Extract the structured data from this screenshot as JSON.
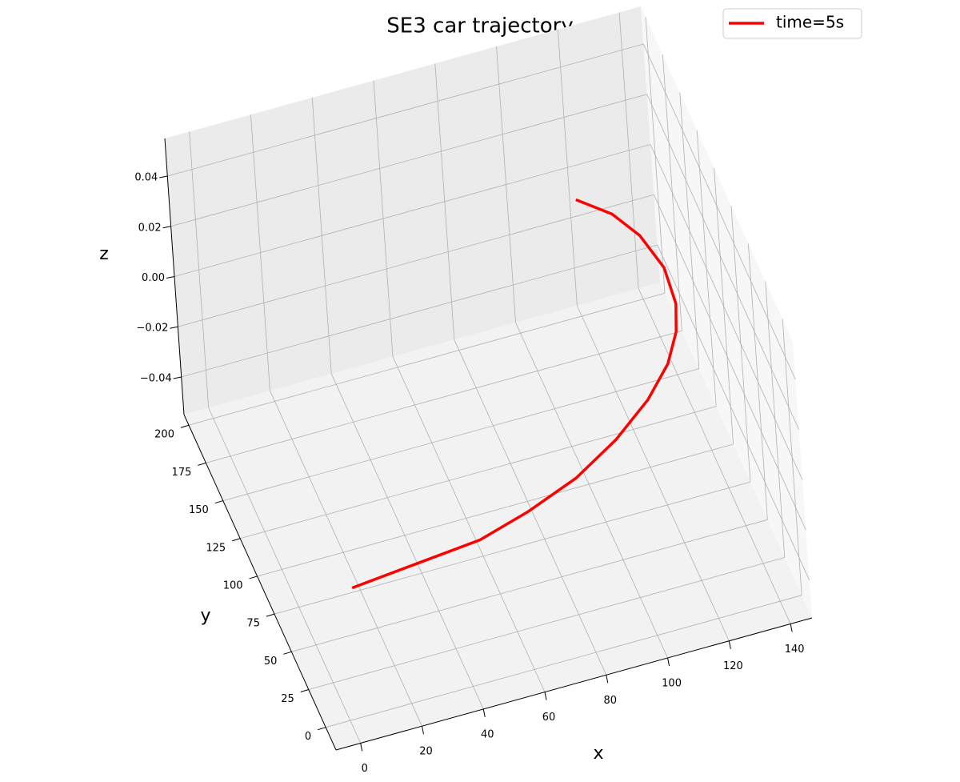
{
  "chart_data": {
    "type": "line3d",
    "title": "SE3  car trajectory",
    "x_label": "x",
    "y_label": "y",
    "z_label": "z",
    "xlim": [
      -8,
      147
    ],
    "ylim": [
      -15,
      207
    ],
    "zlim": [
      -0.055,
      0.055
    ],
    "xticks": [
      0,
      20,
      40,
      60,
      80,
      100,
      120,
      140
    ],
    "yticks": [
      0,
      25,
      50,
      75,
      100,
      125,
      150,
      175,
      200
    ],
    "zticks": [
      {
        "value": -0.04,
        "label": "−0.04"
      },
      {
        "value": -0.02,
        "label": "−0.02"
      },
      {
        "value": 0,
        "label": "0.00"
      },
      0.02,
      0.04
    ],
    "grid": true,
    "legend_position": "upper right",
    "series": [
      {
        "name": "time=5s",
        "color": "#ff0000",
        "x": [
          2.6,
          24.2,
          45.9,
          63.4,
          81.7,
          98.3,
          112.8,
          123.3,
          129.9,
          133.5,
          134.8,
          132.0,
          126.8,
          118.2
        ],
        "y": [
          -5.1,
          -1.4,
          2.3,
          11.0,
          22.9,
          39.0,
          57.3,
          75.2,
          92.7,
          109.2,
          132.3,
          155.1,
          172.3,
          186.7
        ],
        "z": [
          0,
          0,
          0,
          0,
          0,
          0,
          0,
          0,
          0,
          0,
          0,
          0,
          0,
          0
        ]
      }
    ]
  }
}
